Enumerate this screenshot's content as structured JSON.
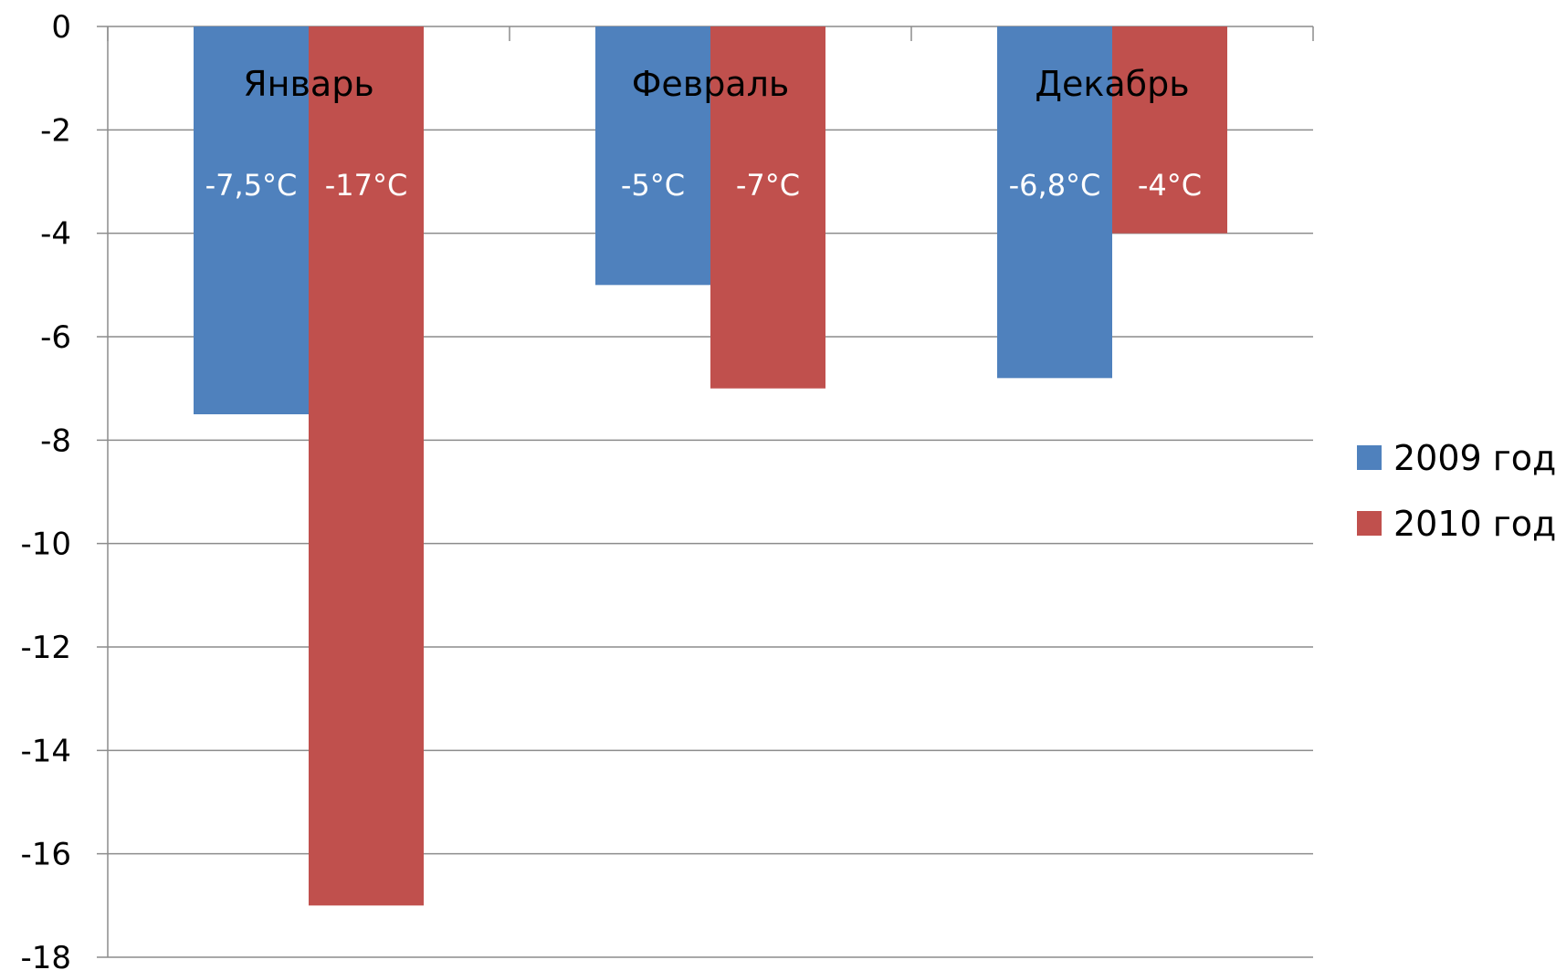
{
  "chart_data": {
    "type": "bar",
    "title": "",
    "xlabel": "",
    "ylabel": "",
    "categories": [
      "Январь",
      "Февраль",
      "Декабрь"
    ],
    "series": [
      {
        "name": "2009 год",
        "color": "#4f81bd",
        "values": [
          -7.5,
          -5,
          -6.8
        ],
        "labels": [
          "-7,5°C",
          "-5°C",
          "-6,8°C"
        ]
      },
      {
        "name": "2010 год",
        "color": "#c0504d",
        "values": [
          -17,
          -7,
          -4
        ],
        "labels": [
          "-17°C",
          "-7°C",
          "-4°C"
        ]
      }
    ],
    "ylim": [
      -18,
      0
    ],
    "yticks": [
      0,
      -2,
      -4,
      -6,
      -8,
      -10,
      -12,
      -14,
      -16,
      -18
    ],
    "grid": true,
    "legend_position": "right"
  }
}
